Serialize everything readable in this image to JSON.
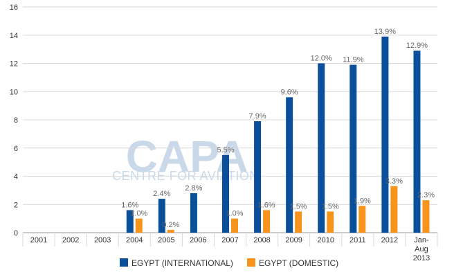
{
  "watermark": {
    "brand": "CAPA",
    "tagline": "CENTRE FOR AVIATION"
  },
  "colors": {
    "international": "#0a4f9c",
    "domestic": "#f7941d",
    "grid": "#d9d9d9",
    "axis": "#999999"
  },
  "chart_data": {
    "type": "bar",
    "title": "",
    "xlabel": "",
    "ylabel": "",
    "ylim": [
      0,
      16
    ],
    "yticks": [
      "0",
      "2",
      "4",
      "6",
      "8",
      "10",
      "12",
      "14",
      "16"
    ],
    "grid": true,
    "legend_position": "bottom",
    "categories": [
      [
        "2001"
      ],
      [
        "2002"
      ],
      [
        "2003"
      ],
      [
        "2004"
      ],
      [
        "2005"
      ],
      [
        "2006"
      ],
      [
        "2007"
      ],
      [
        "2008"
      ],
      [
        "2009"
      ],
      [
        "2010"
      ],
      [
        "2011"
      ],
      [
        "2012"
      ],
      [
        "Jan-",
        "Aug",
        "2013"
      ]
    ],
    "series": [
      {
        "name": "EGYPT (INTERNATIONAL)",
        "color": "#0a4f9c",
        "values": [
          null,
          null,
          null,
          1.6,
          2.4,
          2.8,
          5.5,
          7.9,
          9.6,
          12.0,
          11.9,
          13.9,
          12.9
        ],
        "labels": [
          "",
          "",
          "",
          "1.6%",
          "2.4%",
          "2.8%",
          "5.5%",
          "7.9%",
          "9.6%",
          "12.0%",
          "11.9%",
          "13.9%",
          "12.9%"
        ]
      },
      {
        "name": "EGYPT (DOMESTIC)",
        "color": "#f7941d",
        "values": [
          null,
          null,
          null,
          1.0,
          0.2,
          null,
          1.0,
          1.6,
          1.5,
          1.5,
          1.9,
          3.3,
          2.3
        ],
        "labels": [
          "",
          "",
          "",
          "1.0%",
          "0.2%",
          "",
          "1.0%",
          "1.6%",
          "1.5%",
          "1.5%",
          "1.9%",
          "3.3%",
          "2.3%"
        ]
      }
    ]
  }
}
